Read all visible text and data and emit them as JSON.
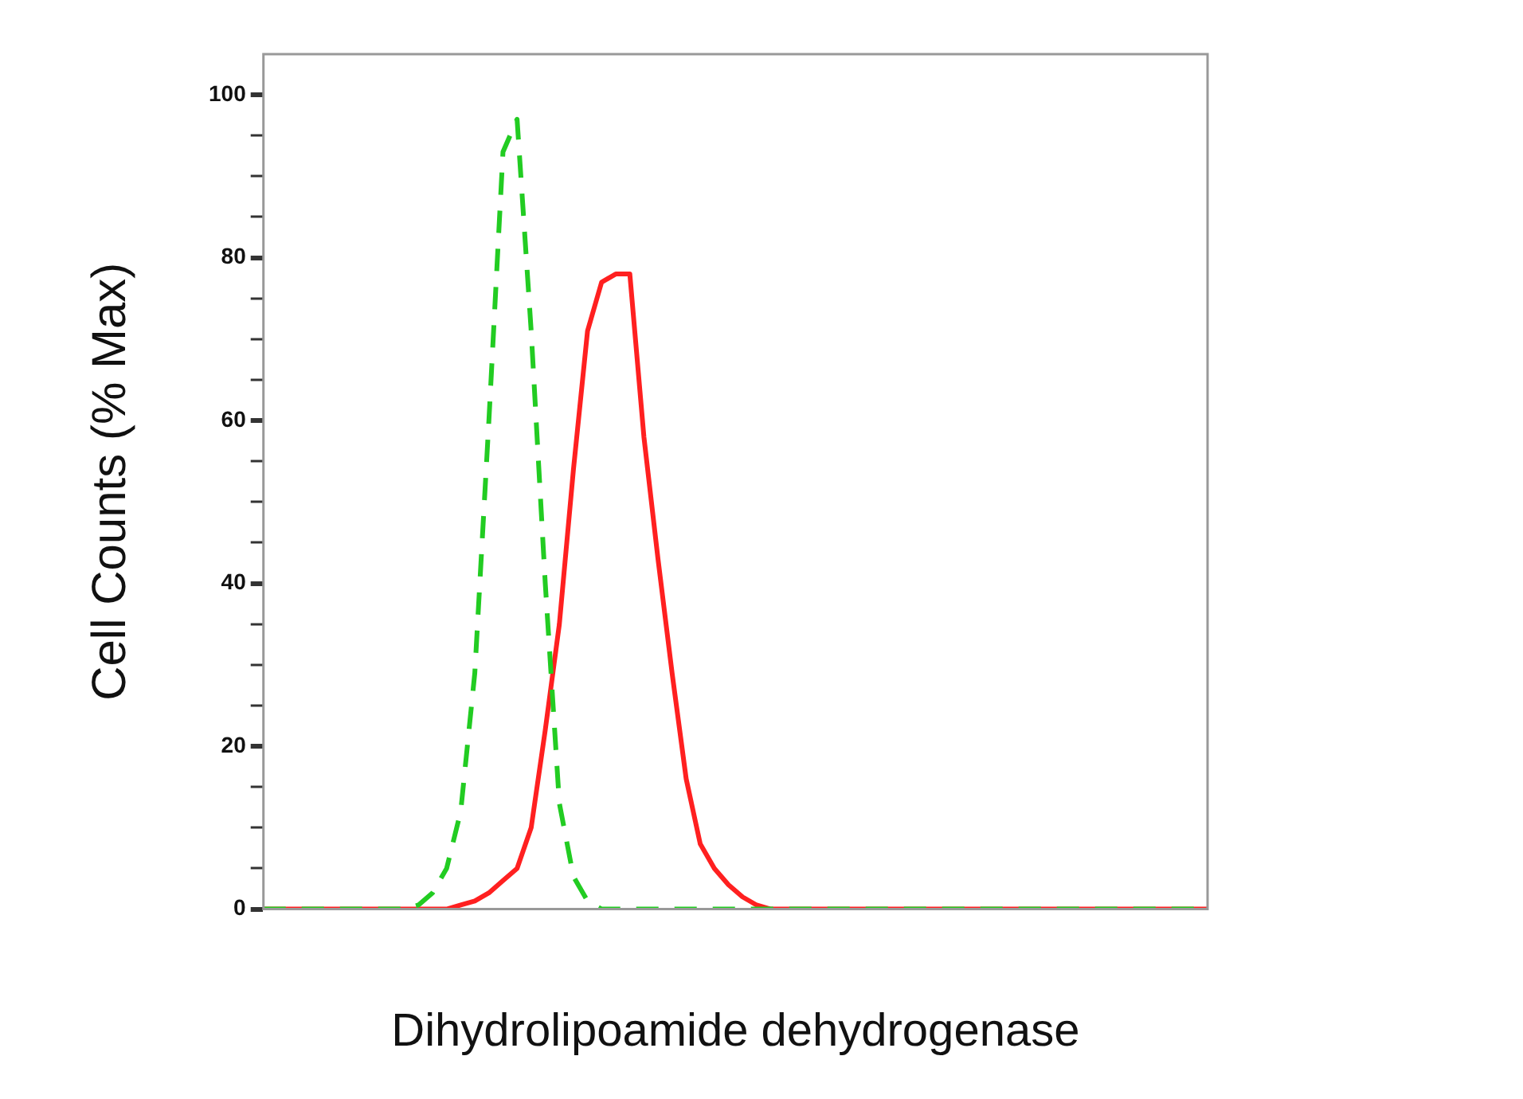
{
  "chart_data": {
    "type": "line",
    "xlabel": "Dihydrolipoamide dehydrogenase",
    "ylabel": "Cell Counts (% Max)",
    "categories": [
      null,
      null,
      null,
      null,
      null,
      null,
      null,
      null,
      null,
      null,
      null,
      null,
      null,
      null,
      null,
      null,
      null,
      null,
      null,
      null,
      null,
      null,
      null,
      null,
      null,
      null,
      null,
      null,
      null,
      null,
      null,
      null,
      null,
      null,
      null,
      null,
      null,
      null,
      null,
      null,
      null,
      null,
      null,
      null,
      null,
      null,
      null,
      null,
      null,
      null,
      null,
      null,
      null,
      null,
      null,
      null,
      null,
      null,
      null,
      null,
      null,
      null,
      null,
      null,
      null,
      null,
      null,
      null
    ],
    "series": [
      {
        "color": "#22cc22",
        "line_style": "dashed",
        "values": [
          0,
          0,
          0,
          0,
          0,
          0,
          0,
          0,
          0,
          0,
          0,
          0.5,
          2,
          5,
          12,
          29,
          60,
          93,
          97,
          71,
          40,
          13,
          4,
          1,
          0,
          0,
          0,
          0,
          0,
          0,
          0,
          0,
          0,
          0,
          0,
          0,
          0,
          0,
          0,
          0,
          0,
          0,
          0,
          0,
          0,
          0,
          0,
          0,
          0,
          0,
          0,
          0,
          0,
          0,
          0,
          0,
          0,
          0,
          0,
          0,
          0,
          0,
          0,
          0,
          0,
          0,
          0,
          0
        ]
      },
      {
        "color": "#ff2020",
        "line_style": "solid",
        "values": [
          0,
          0,
          0,
          0,
          0,
          0,
          0,
          0,
          0,
          0,
          0,
          0,
          0,
          0,
          0.5,
          1,
          2,
          3.5,
          5,
          10,
          22,
          35,
          54,
          71,
          77,
          78,
          78,
          58,
          43,
          29,
          16,
          8,
          5,
          3,
          1.5,
          0.5,
          0,
          0,
          0,
          0,
          0,
          0,
          0,
          0,
          0,
          0,
          0,
          0,
          0,
          0,
          0,
          0,
          0,
          0,
          0,
          0,
          0,
          0,
          0,
          0,
          0,
          0,
          0,
          0,
          0,
          0,
          0,
          0
        ]
      }
    ],
    "ylim": [
      0,
      105
    ],
    "yticks": [
      0,
      {
        "value": 5,
        "label": null
      },
      {
        "value": 10,
        "label": null
      },
      {
        "value": 15,
        "label": null
      },
      20,
      {
        "value": 25,
        "label": null
      },
      {
        "value": 30,
        "label": null
      },
      {
        "value": 35,
        "label": null
      },
      40,
      {
        "value": 45,
        "label": null
      },
      {
        "value": 50,
        "label": null
      },
      {
        "value": 55,
        "label": null
      },
      60,
      {
        "value": 65,
        "label": null
      },
      {
        "value": 70,
        "label": null
      },
      {
        "value": 75,
        "label": null
      },
      80,
      {
        "value": 85,
        "label": null
      },
      {
        "value": 90,
        "label": null
      },
      {
        "value": 95,
        "label": null
      },
      100
    ],
    "legend": false,
    "marker": "none"
  }
}
